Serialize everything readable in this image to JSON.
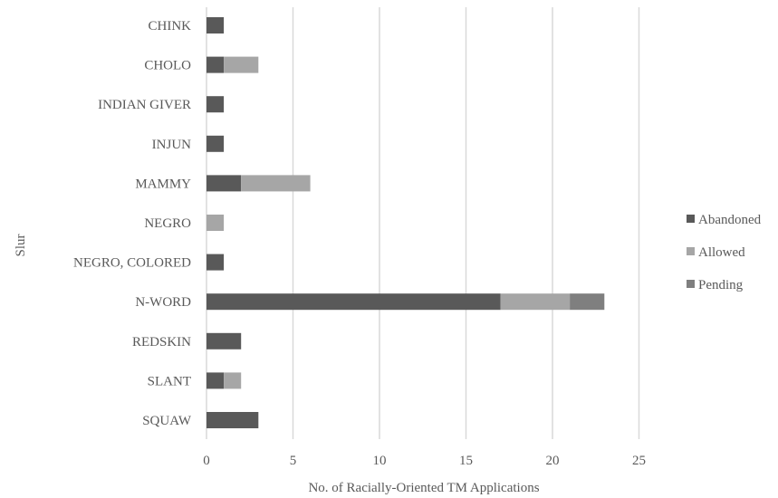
{
  "chart_data": {
    "type": "bar",
    "orientation": "horizontal",
    "stacked": true,
    "title": "",
    "xlabel": "No. of Racially-Oriented TM Applications",
    "ylabel": "Slur",
    "categories": [
      "CHINK",
      "CHOLO",
      "INDIAN GIVER",
      "INJUN",
      "MAMMY",
      "NEGRO",
      "NEGRO, COLORED",
      "N-WORD",
      "REDSKIN",
      "SLANT",
      "SQUAW"
    ],
    "series": [
      {
        "name": "Abandoned",
        "color": "#595959",
        "values": [
          1,
          1,
          1,
          1,
          2,
          0,
          1,
          17,
          2,
          1,
          3
        ]
      },
      {
        "name": "Allowed",
        "color": "#a6a6a6",
        "values": [
          0,
          2,
          0,
          0,
          4,
          1,
          0,
          4,
          0,
          1,
          0
        ]
      },
      {
        "name": "Pending",
        "color": "#7f7f7f",
        "values": [
          0,
          0,
          0,
          0,
          0,
          0,
          0,
          2,
          0,
          0,
          0
        ]
      }
    ],
    "xlim": [
      0,
      25
    ],
    "xticks": [
      0,
      5,
      10,
      15,
      20,
      25
    ],
    "grid": "vertical",
    "legend": "right"
  }
}
